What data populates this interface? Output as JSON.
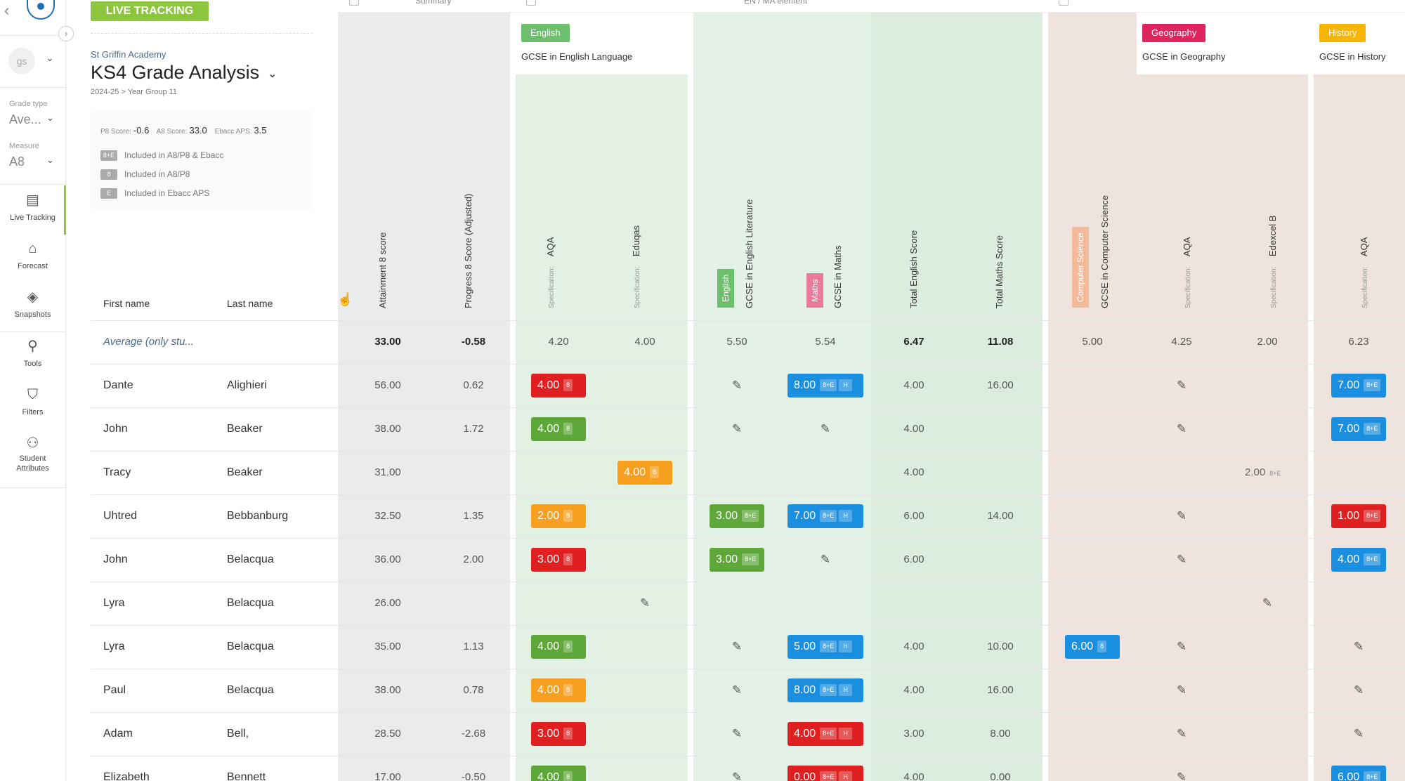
{
  "nav": {
    "user_initials": "gs",
    "grade_type_label": "Grade type",
    "grade_type_value": "Ave...",
    "measure_label": "Measure",
    "measure_value": "A8",
    "items": [
      {
        "label": "Live Tracking",
        "icon": "table-icon"
      },
      {
        "label": "Forecast",
        "icon": "forecast-icon"
      },
      {
        "label": "Snapshots",
        "icon": "layers-icon"
      },
      {
        "label": "Tools",
        "icon": "wrench-icon"
      },
      {
        "label": "Filters",
        "icon": "filter-icon"
      },
      {
        "label": "Student Attributes",
        "icon": "people-icon"
      }
    ]
  },
  "header": {
    "badge": "LIVE TRACKING",
    "school": "St Griffin Academy",
    "title": "KS4 Grade Analysis",
    "breadcrumb": "2024-25 > Year Group 11"
  },
  "scores": {
    "p8_label": "P8 Score:",
    "p8_value": "-0.6",
    "a8_label": "A8 Score:",
    "a8_value": "33.0",
    "ebacc_label": "Ebacc APS:",
    "ebacc_value": "3.5"
  },
  "legend": [
    {
      "tag": "8+E",
      "text": "Included in A8/P8 & Ebacc"
    },
    {
      "tag": "8",
      "text": "Included in A8/P8"
    },
    {
      "tag": "E",
      "text": "Included in Ebacc APS"
    }
  ],
  "top_groups": [
    "Summary",
    "EN / MA element"
  ],
  "columns": {
    "first_name": "First name",
    "last_name": "Last name",
    "attainment": "Attainment 8 score",
    "progress": "Progress 8 Score (Adjusted)",
    "spec_label": "Specification:",
    "eng_aqa": "AQA",
    "eng_eduqas": "Eduqas",
    "eng_lit_tag": "English",
    "eng_lit": "GCSE in English Literature",
    "maths_tag": "Maths",
    "maths": "GCSE in Maths",
    "total_eng": "Total English Score",
    "total_maths": "Total Maths Score",
    "cs_tag": "Computer Science",
    "cs": "GCSE in Computer Science",
    "geo_aqa": "AQA",
    "geo_edexcel": "Edexcel B",
    "hist_aqa": "AQA"
  },
  "subjects": {
    "english": {
      "tag": "English",
      "name": "GCSE in English Language",
      "color": "#6cbf6c"
    },
    "geography": {
      "tag": "Geography",
      "name": "GCSE in Geography",
      "color": "#e0245e"
    },
    "history": {
      "tag": "History",
      "name": "GCSE in History",
      "color": "#f7b500"
    }
  },
  "average": {
    "label": "Average (only stu...",
    "att": "33.00",
    "p8": "-0.58",
    "eng_aqa": "4.20",
    "eng_eduqas": "4.00",
    "eng_lit": "5.50",
    "maths": "5.54",
    "total_eng": "6.47",
    "total_maths": "11.08",
    "cs": "5.00",
    "geo_aqa": "4.25",
    "geo_edexcel": "2.00",
    "hist_aqa": "6.23"
  },
  "rows": [
    {
      "first": "Dante",
      "last": "Alighieri",
      "att": "56.00",
      "p8": "0.62",
      "total_eng": "4.00",
      "total_maths": "16.00",
      "eng_aqa": {
        "v": "4.00",
        "t": "8",
        "c": "#e02020"
      },
      "eng_lit": "edit",
      "maths": {
        "v": "8.00",
        "t": "8+E",
        "h": "H",
        "c": "#1a8fe0"
      },
      "geo_aqa": "edit",
      "hist_aqa": {
        "v": "7.00",
        "t": "8+E",
        "c": "#1a8fe0"
      }
    },
    {
      "first": "John",
      "last": "Beaker",
      "att": "38.00",
      "p8": "1.72",
      "total_eng": "4.00",
      "total_maths": "",
      "eng_aqa": {
        "v": "4.00",
        "t": "8",
        "c": "#5ea83a"
      },
      "eng_lit": "edit",
      "maths": "edit",
      "geo_aqa": "edit",
      "hist_aqa": {
        "v": "7.00",
        "t": "8+E",
        "c": "#1a8fe0"
      }
    },
    {
      "first": "Tracy",
      "last": "Beaker",
      "att": "31.00",
      "p8": "",
      "total_eng": "4.00",
      "total_maths": "",
      "eng_eduqas": {
        "v": "4.00",
        "t": "8",
        "c": "#f7a020"
      },
      "geo_edexcel_plain": {
        "v": "2.00",
        "t": "8+E"
      }
    },
    {
      "first": "Uhtred",
      "last": "Bebbanburg",
      "att": "32.50",
      "p8": "1.35",
      "total_eng": "6.00",
      "total_maths": "14.00",
      "eng_aqa": {
        "v": "2.00",
        "t": "8",
        "c": "#f7a020"
      },
      "eng_lit": {
        "v": "3.00",
        "t": "8+E",
        "c": "#5ea83a"
      },
      "maths": {
        "v": "7.00",
        "t": "8+E",
        "h": "H",
        "c": "#1a8fe0"
      },
      "geo_aqa": "edit",
      "hist_aqa": {
        "v": "1.00",
        "t": "8+E",
        "c": "#e02020"
      }
    },
    {
      "first": "John",
      "last": "Belacqua",
      "att": "36.00",
      "p8": "2.00",
      "total_eng": "6.00",
      "total_maths": "",
      "eng_aqa": {
        "v": "3.00",
        "t": "8",
        "c": "#e02020"
      },
      "eng_lit": {
        "v": "3.00",
        "t": "8+E",
        "c": "#5ea83a"
      },
      "maths": "edit",
      "geo_aqa": "edit",
      "hist_aqa": {
        "v": "4.00",
        "t": "8+E",
        "c": "#1a8fe0"
      }
    },
    {
      "first": "Lyra",
      "last": "Belacqua",
      "att": "26.00",
      "p8": "",
      "total_eng": "",
      "total_maths": "",
      "eng_eduqas": "edit",
      "geo_edexcel": "edit"
    },
    {
      "first": "Lyra",
      "last": "Belacqua",
      "att": "35.00",
      "p8": "1.13",
      "total_eng": "4.00",
      "total_maths": "10.00",
      "eng_aqa": {
        "v": "4.00",
        "t": "8",
        "c": "#5ea83a"
      },
      "eng_lit": "edit",
      "maths": {
        "v": "5.00",
        "t": "8+E",
        "h": "H",
        "c": "#1a8fe0"
      },
      "cs": {
        "v": "6.00",
        "t": "8",
        "c": "#1a8fe0"
      },
      "geo_aqa": "edit",
      "hist_aqa": "edit"
    },
    {
      "first": "Paul",
      "last": "Belacqua",
      "att": "38.00",
      "p8": "0.78",
      "total_eng": "4.00",
      "total_maths": "16.00",
      "eng_aqa": {
        "v": "4.00",
        "t": "8",
        "c": "#f7a020"
      },
      "eng_lit": "edit",
      "maths": {
        "v": "8.00",
        "t": "8+E",
        "h": "H",
        "c": "#1a8fe0"
      },
      "geo_aqa": "edit",
      "hist_aqa": "edit"
    },
    {
      "first": "Adam",
      "last": "Bell,",
      "att": "28.50",
      "p8": "-2.68",
      "total_eng": "3.00",
      "total_maths": "8.00",
      "eng_aqa": {
        "v": "3.00",
        "t": "8",
        "c": "#e02020"
      },
      "eng_lit": "edit",
      "maths": {
        "v": "4.00",
        "t": "8+E",
        "h": "H",
        "c": "#e02020"
      },
      "geo_aqa": "edit",
      "hist_aqa": "edit"
    },
    {
      "first": "Elizabeth",
      "last": "Bennett",
      "att": "17.00",
      "p8": "-0.50",
      "total_eng": "4.00",
      "total_maths": "0.00",
      "eng_aqa": {
        "v": "4.00",
        "t": "8",
        "c": "#5ea83a"
      },
      "eng_lit": "edit",
      "maths": {
        "v": "0.00",
        "t": "8+E",
        "h": "H",
        "c": "#e02020"
      },
      "geo_aqa": "edit",
      "hist_aqa": {
        "v": "6.00",
        "t": "8+E",
        "c": "#1a8fe0"
      }
    }
  ]
}
